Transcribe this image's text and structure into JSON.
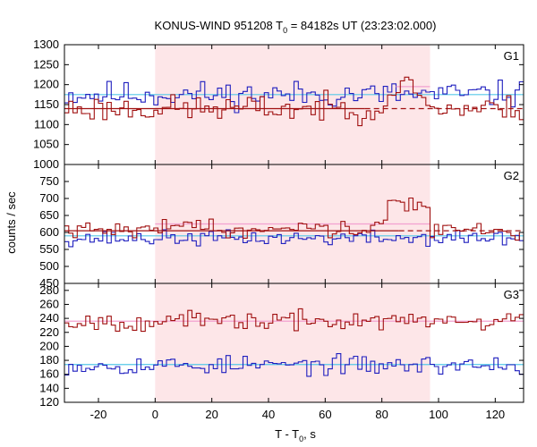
{
  "title": {
    "prefix": "KONUS-WIND 951208 T",
    "sub": "0",
    "suffix": " = 84182s UT (23:23:02.000)"
  },
  "xlabel": {
    "prefix": "T - T",
    "sub": "0",
    "suffix": ", s"
  },
  "ylabel": "counts / sec",
  "chart_data": {
    "type": "line",
    "step": true,
    "xlim": [
      -32,
      130
    ],
    "x_ticks": [
      -20,
      0,
      20,
      40,
      60,
      80,
      100,
      120
    ],
    "x_tick_labels": [
      "-20",
      "0",
      "20",
      "40",
      "60",
      "80",
      "100",
      "120"
    ],
    "highlight_interval": [
      0,
      97
    ],
    "bin_width": 1.5,
    "panels": [
      {
        "label": "G1",
        "ylim": [
          1000,
          1300
        ],
        "y_ticks": [
          1000,
          1050,
          1100,
          1150,
          1200,
          1250,
          1300
        ],
        "y_tick_labels": [
          "1000",
          "1050",
          "1100",
          "1150",
          "1200",
          "1250",
          "1300"
        ],
        "series": [
          {
            "color": "#1f1fbf",
            "base": 1175,
            "amplitude": 30,
            "seed": 11,
            "background": {
              "color": "#55c8e8",
              "y": 1175
            }
          },
          {
            "color": "#a01010",
            "base": 1140,
            "amplitude": 30,
            "seed": 23,
            "background": {
              "color": "#a01010",
              "y": 1140,
              "dashed_from": 74
            },
            "rate_level": {
              "color": "#f2a0d0",
              "y": 1195,
              "from": 85,
              "to": 97
            },
            "bump": [
              {
                "from": 82,
                "to": 95,
                "add": 55
              }
            ]
          }
        ]
      },
      {
        "label": "G2",
        "ylim": [
          450,
          800
        ],
        "y_ticks": [
          450,
          500,
          550,
          600,
          650,
          700,
          750
        ],
        "y_tick_labels": [
          "450",
          "500",
          "550",
          "600",
          "650",
          "700",
          "750"
        ],
        "series": [
          {
            "color": "#1f1fbf",
            "base": 583,
            "amplitude": 20,
            "seed": 37,
            "background": {
              "color": "#55c8e8",
              "y": 590
            }
          },
          {
            "color": "#a01010",
            "base": 605,
            "amplitude": 20,
            "seed": 41,
            "background": {
              "color": "#a01010",
              "y": 605,
              "dashed_from": 86
            },
            "rate_level": {
              "color": "#f2a0d0",
              "y": 625,
              "from": 0,
              "to": 97
            },
            "bump": [
              {
                "from": 2,
                "to": 20,
                "add": 22
              },
              {
                "from": 40,
                "to": 60,
                "add": 15
              },
              {
                "from": 76,
                "to": 82,
                "add": 35
              },
              {
                "from": 82,
                "to": 97,
                "add": 95
              }
            ]
          }
        ]
      },
      {
        "label": "G3",
        "ylim": [
          120,
          290
        ],
        "y_ticks": [
          120,
          140,
          160,
          180,
          200,
          220,
          240,
          260,
          280
        ],
        "y_tick_labels": [
          "120",
          "140",
          "160",
          "180",
          "200",
          "220",
          "240",
          "260",
          "280"
        ],
        "series": [
          {
            "color": "#1f1fbf",
            "base": 173,
            "amplitude": 12,
            "seed": 53,
            "background": {
              "color": "#55c8e8",
              "y": 174
            }
          },
          {
            "color": "#a01010",
            "base": 236,
            "amplitude": 12,
            "seed": 67,
            "background": {
              "color": "#f2a0d0",
              "y": 236
            }
          }
        ]
      }
    ]
  }
}
